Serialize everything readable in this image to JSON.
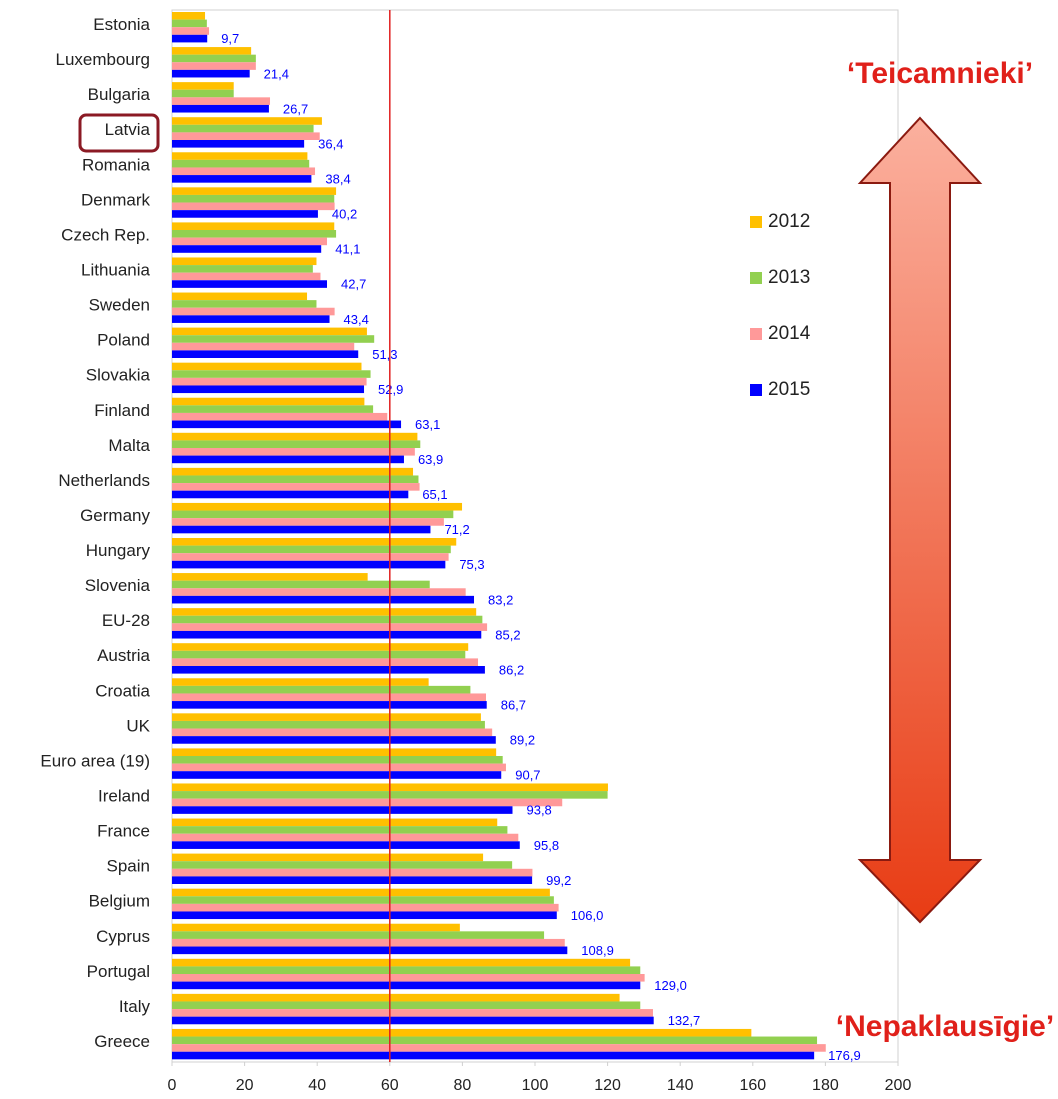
{
  "chart_data": {
    "type": "hbar",
    "categories": [
      "Estonia",
      "Luxembourg",
      "Bulgaria",
      "Latvia",
      "Romania",
      "Denmark",
      "Czech Rep.",
      "Lithuania",
      "Sweden",
      "Poland",
      "Slovakia",
      "Finland",
      "Malta",
      "Netherlands",
      "Germany",
      "Hungary",
      "Slovenia",
      "EU-28",
      "Austria",
      "Croatia",
      "UK",
      "Euro area (19)",
      "Ireland",
      "France",
      "Spain",
      "Belgium",
      "Cyprus",
      "Portugal",
      "Italy",
      "Greece"
    ],
    "series": [
      {
        "name": "2012",
        "color": "#ffc000",
        "values": [
          9.1,
          21.8,
          17.0,
          41.3,
          37.3,
          45.2,
          44.7,
          39.8,
          37.2,
          53.7,
          52.2,
          53.0,
          67.6,
          66.4,
          79.9,
          78.3,
          53.9,
          83.8,
          81.6,
          70.7,
          85.1,
          89.3,
          120.1,
          89.6,
          85.7,
          104.1,
          79.3,
          126.2,
          123.3,
          159.6
        ]
      },
      {
        "name": "2013",
        "color": "#92d050",
        "values": [
          9.6,
          23.1,
          17.0,
          39.0,
          37.8,
          44.7,
          45.2,
          38.8,
          39.8,
          55.7,
          54.7,
          55.4,
          68.4,
          67.9,
          77.5,
          76.8,
          71.0,
          85.5,
          80.8,
          82.2,
          86.2,
          91.1,
          120.0,
          92.4,
          93.7,
          105.2,
          102.5,
          129.0,
          129.0,
          177.7
        ]
      },
      {
        "name": "2014",
        "color": "#ff9999",
        "values": [
          10.2,
          23.1,
          27.0,
          40.7,
          39.4,
          44.8,
          42.7,
          40.9,
          44.8,
          50.2,
          53.6,
          59.3,
          66.9,
          68.2,
          74.9,
          76.2,
          80.9,
          86.8,
          84.3,
          86.5,
          88.2,
          92.0,
          107.5,
          95.4,
          99.3,
          106.5,
          108.2,
          130.2,
          132.5,
          180.1
        ]
      },
      {
        "name": "2015",
        "color": "#0000ff",
        "values": [
          9.7,
          21.4,
          26.7,
          36.4,
          38.4,
          40.2,
          41.1,
          42.7,
          43.4,
          51.3,
          52.9,
          63.1,
          63.9,
          65.1,
          71.2,
          75.3,
          83.2,
          85.2,
          86.2,
          86.7,
          89.2,
          90.7,
          93.8,
          95.8,
          99.2,
          106.0,
          108.9,
          129.0,
          132.7,
          176.9
        ],
        "value_labels": [
          "9,7",
          "21,4",
          "26,7",
          "36,4",
          "38,4",
          "40,2",
          "41,1",
          "42,7",
          "43,4",
          "51,3",
          "52,9",
          "63,1",
          "63,9",
          "65,1",
          "71,2",
          "75,3",
          "83,2",
          "85,2",
          "86,2",
          "86,7",
          "89,2",
          "90,7",
          "93,8",
          "95,8",
          "99,2",
          "106,0",
          "108,9",
          "129,0",
          "132,7",
          "176,9"
        ]
      }
    ],
    "xlim": [
      0,
      200
    ],
    "xticks": [
      0,
      20,
      40,
      60,
      80,
      100,
      120,
      140,
      160,
      180,
      200
    ],
    "reference_line": 60,
    "reference_color": "#e02020",
    "grid": false,
    "annotations": [
      "‘Teicamnieki’",
      "‘Nepaklausīgie’"
    ]
  }
}
